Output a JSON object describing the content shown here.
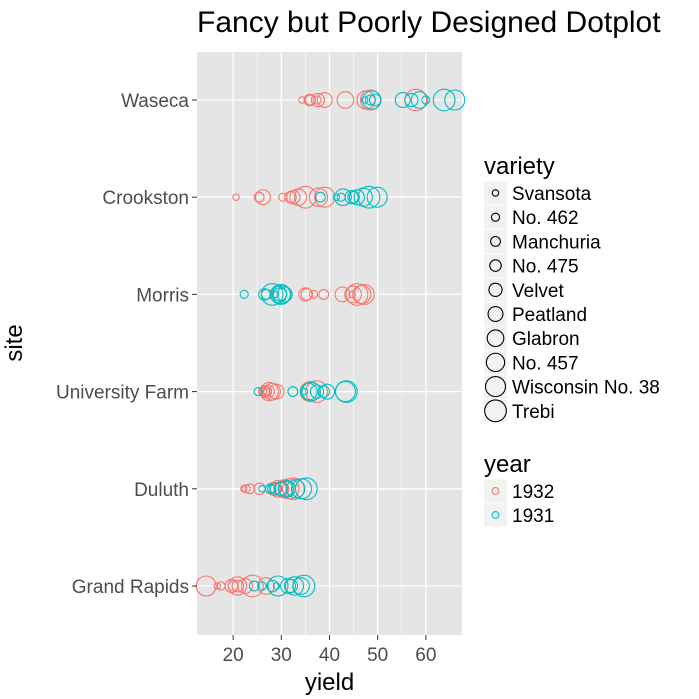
{
  "chart_data": {
    "type": "scatter",
    "title": "Fancy but Poorly Designed Dotplot",
    "xlabel": "yield",
    "ylabel": "site",
    "xlim": [
      12.5,
      67.5
    ],
    "xticks": [
      20,
      30,
      40,
      50,
      60
    ],
    "sites": [
      "Waseca",
      "Crookston",
      "Morris",
      "University Farm",
      "Duluth",
      "Grand Rapids"
    ],
    "varieties": [
      "Svansota",
      "No. 462",
      "Manchuria",
      "No. 475",
      "Velvet",
      "Peatland",
      "Glabron",
      "No. 457",
      "Wisconsin No. 38",
      "Trebi"
    ],
    "years": [
      "1932",
      "1931"
    ],
    "colors": {
      "1932": "#F8766D",
      "1931": "#00BFC4"
    },
    "panel_bg": "#e5e5e5",
    "grid_color": "#ffffff",
    "legend": {
      "position": "right",
      "variety_title": "variety",
      "year_title": "year"
    },
    "points": [
      {
        "site": "Waseca",
        "year": "1932",
        "values": [
          34.3,
          37.4,
          36.0,
          35.9,
          37.6,
          39.0,
          43.3,
          47.6,
          48.5,
          57.9
        ]
      },
      {
        "site": "Waseca",
        "year": "1931",
        "values": [
          47.3,
          60.0,
          48.5,
          49.5,
          57.0,
          55.2,
          58.7,
          48.8,
          66.0,
          63.8
        ]
      },
      {
        "site": "Crookston",
        "year": "1932",
        "values": [
          20.6,
          30.3,
          25.4,
          31.9,
          32.5,
          26.2,
          33.5,
          37.7,
          39.0,
          35.0
        ]
      },
      {
        "site": "Crookston",
        "year": "1931",
        "values": [
          41.4,
          42.4,
          38.1,
          45.0,
          44.6,
          45.7,
          42.8,
          47.0,
          49.9,
          48.2
        ]
      },
      {
        "site": "Morris",
        "year": "1932",
        "values": [
          44.7,
          36.7,
          38.8,
          35.3,
          35.0,
          42.7,
          44.9,
          46.7,
          47.2,
          45.7
        ]
      },
      {
        "site": "Morris",
        "year": "1931",
        "values": [
          28.8,
          22.3,
          26.9,
          26.5,
          29.7,
          30.7,
          29.4,
          30.0,
          29.9,
          28.1
        ]
      },
      {
        "site": "University Farm",
        "year": "1932",
        "values": [
          26.9,
          26.1,
          27.0,
          26.5,
          27.2,
          29.0,
          28.1,
          27.5,
          36.0,
          37.3
        ]
      },
      {
        "site": "University Farm",
        "year": "1931",
        "values": [
          34.8,
          25.2,
          32.4,
          38.8,
          37.4,
          39.5,
          35.7,
          36.2,
          43.3,
          43.5
        ]
      },
      {
        "site": "Duluth",
        "year": "1932",
        "values": [
          22.2,
          22.7,
          23.5,
          25.5,
          28.5,
          30.0,
          29.3,
          30.7,
          31.6,
          32.5
        ]
      },
      {
        "site": "Duluth",
        "year": "1931",
        "values": [
          26.0,
          28.0,
          27.7,
          28.9,
          29.9,
          30.9,
          31.2,
          33.0,
          34.2,
          35.2
        ]
      },
      {
        "site": "Grand Rapids",
        "year": "1932",
        "values": [
          16.7,
          17.5,
          20.0,
          21.0,
          19.7,
          22.5,
          26.8,
          20.9,
          14.4,
          24.0
        ]
      },
      {
        "site": "Grand Rapids",
        "year": "1931",
        "values": [
          29.0,
          26.0,
          24.4,
          28.2,
          32.0,
          31.4,
          34.1,
          32.7,
          29.3,
          34.7
        ]
      }
    ]
  }
}
